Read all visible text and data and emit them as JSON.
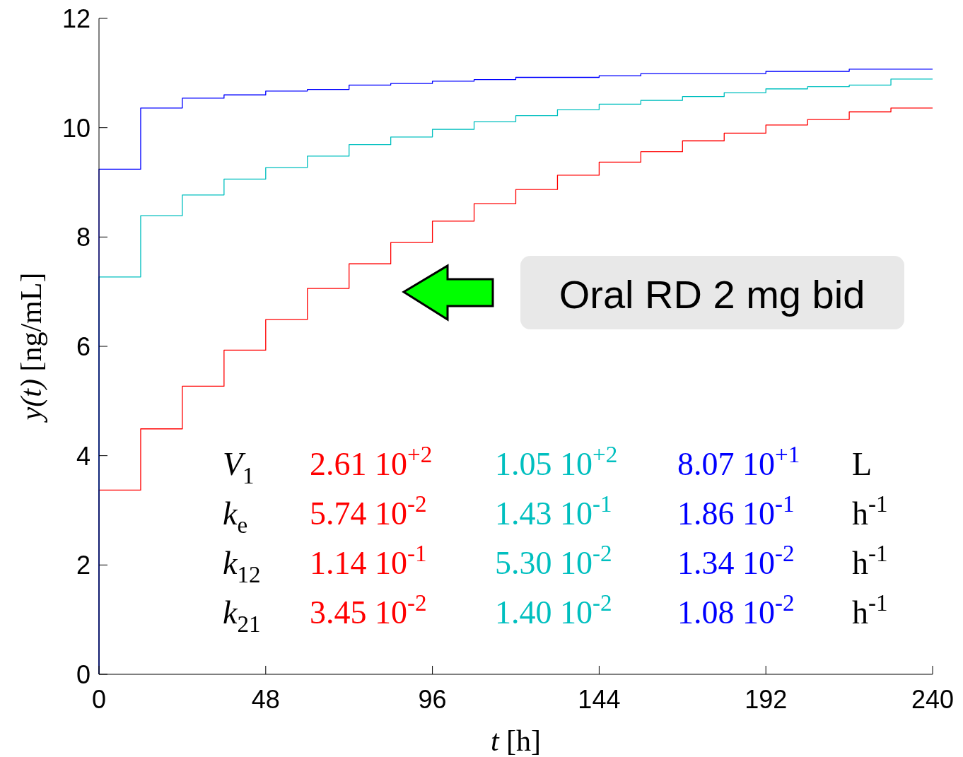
{
  "chart_data": {
    "type": "step",
    "xlabel": "t [h]",
    "ylabel": "y(t) [ng/mL]",
    "x": [
      0,
      0,
      12,
      24,
      36,
      48,
      60,
      72,
      84,
      96,
      108,
      120,
      132,
      144,
      156,
      168,
      180,
      192,
      204,
      216,
      228,
      240
    ],
    "series": [
      {
        "color": "#ff0000",
        "values": [
          0,
          3.37,
          4.49,
          5.27,
          5.93,
          6.49,
          7.06,
          7.51,
          7.9,
          8.29,
          8.61,
          8.87,
          9.13,
          9.37,
          9.56,
          9.76,
          9.9,
          10.05,
          10.15,
          10.29,
          10.36,
          10.36
        ]
      },
      {
        "color": "#00bfbf",
        "values": [
          0,
          7.27,
          8.39,
          8.77,
          9.06,
          9.27,
          9.48,
          9.69,
          9.83,
          9.97,
          10.11,
          10.22,
          10.33,
          10.43,
          10.5,
          10.57,
          10.64,
          10.71,
          10.75,
          10.78,
          10.89,
          10.89
        ]
      },
      {
        "color": "#0000ff",
        "values": [
          0,
          9.24,
          10.36,
          10.54,
          10.6,
          10.67,
          10.7,
          10.78,
          10.81,
          10.85,
          10.88,
          10.92,
          10.92,
          10.95,
          10.99,
          10.99,
          10.99,
          11.03,
          11.03,
          11.07,
          11.07,
          11.07
        ]
      }
    ],
    "xlim": [
      0,
      240
    ],
    "xticks": [
      0,
      48,
      96,
      144,
      192,
      240
    ],
    "ylim": [
      0,
      12
    ],
    "yticks": [
      0,
      2,
      4,
      6,
      8,
      10,
      12
    ],
    "grid": false,
    "line_style": "solid",
    "annotations": [
      "Oral RD 2 mg bid",
      "V$_{1}$",
      "2.61 10$^{+2}$",
      "1.05 10$^{+2}$",
      "8.07 10$^{+1}$",
      "L",
      "k$_{e}$",
      "5.74 10$^{-2}$",
      "1.43 10$^{-1}$",
      "1.86 10$^{-1}$",
      "h$^{-1}$",
      "k$_{12}$",
      "1.14 10$^{-1}$",
      "5.30 10$^{-2}$",
      "1.34 10$^{-2}$",
      "h$^{-1}$",
      "k$_{21}$",
      "3.45 10$^{-2}$",
      "1.40 10$^{-2}$",
      "1.08 10$^{-2}$",
      "h$^{-1}$"
    ]
  }
}
